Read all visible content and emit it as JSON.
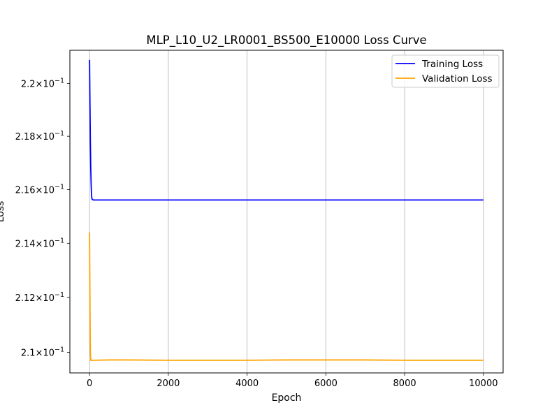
{
  "chart_data": {
    "type": "line",
    "title": "MLP_L10_U2_LR0001_BS500_E10000 Loss Curve",
    "xlabel": "Epoch",
    "ylabel": "Loss",
    "xlim": [
      -500,
      10500
    ],
    "ylim": [
      0.20925,
      0.22127
    ],
    "y_scale": "log",
    "grid": "x-only",
    "legend_position": "top-right",
    "x_ticks": [
      0,
      2000,
      4000,
      6000,
      8000,
      10000
    ],
    "x_tick_labels": [
      "0",
      "2000",
      "4000",
      "6000",
      "8000",
      "10000"
    ],
    "y_ticks": [
      0.21,
      0.212,
      0.214,
      0.216,
      0.218,
      0.22
    ],
    "y_tick_mantissas": [
      "2.1",
      "2.12",
      "2.14",
      "2.16",
      "2.18",
      "2.2"
    ],
    "y_tick_base": "×10",
    "y_tick_exponent": "−1",
    "series": [
      {
        "name": "Training Loss",
        "color": "#0000ff",
        "x": [
          0,
          10,
          20,
          30,
          40,
          50,
          60,
          80,
          100,
          150,
          200,
          500,
          1000,
          2000,
          3000,
          4000,
          5000,
          6000,
          7000,
          8000,
          9000,
          10000
        ],
        "y": [
          0.2209,
          0.2192,
          0.2178,
          0.2168,
          0.2162,
          0.2158,
          0.21565,
          0.21562,
          0.21561,
          0.21561,
          0.21561,
          0.21561,
          0.21561,
          0.21561,
          0.21561,
          0.21561,
          0.21561,
          0.21561,
          0.21561,
          0.21561,
          0.21561,
          0.21561
        ]
      },
      {
        "name": "Validation Loss",
        "color": "#ffa500",
        "x": [
          0,
          10,
          20,
          30,
          40,
          50,
          80,
          100,
          500,
          1000,
          2000,
          3000,
          4000,
          5000,
          6000,
          7000,
          8000,
          9000,
          10000
        ],
        "y": [
          0.2144,
          0.2118,
          0.21,
          0.2097,
          0.20972,
          0.20971,
          0.20971,
          0.20971,
          0.20972,
          0.20972,
          0.20971,
          0.20971,
          0.20971,
          0.20972,
          0.20972,
          0.20972,
          0.20971,
          0.20971,
          0.20971
        ]
      }
    ]
  }
}
